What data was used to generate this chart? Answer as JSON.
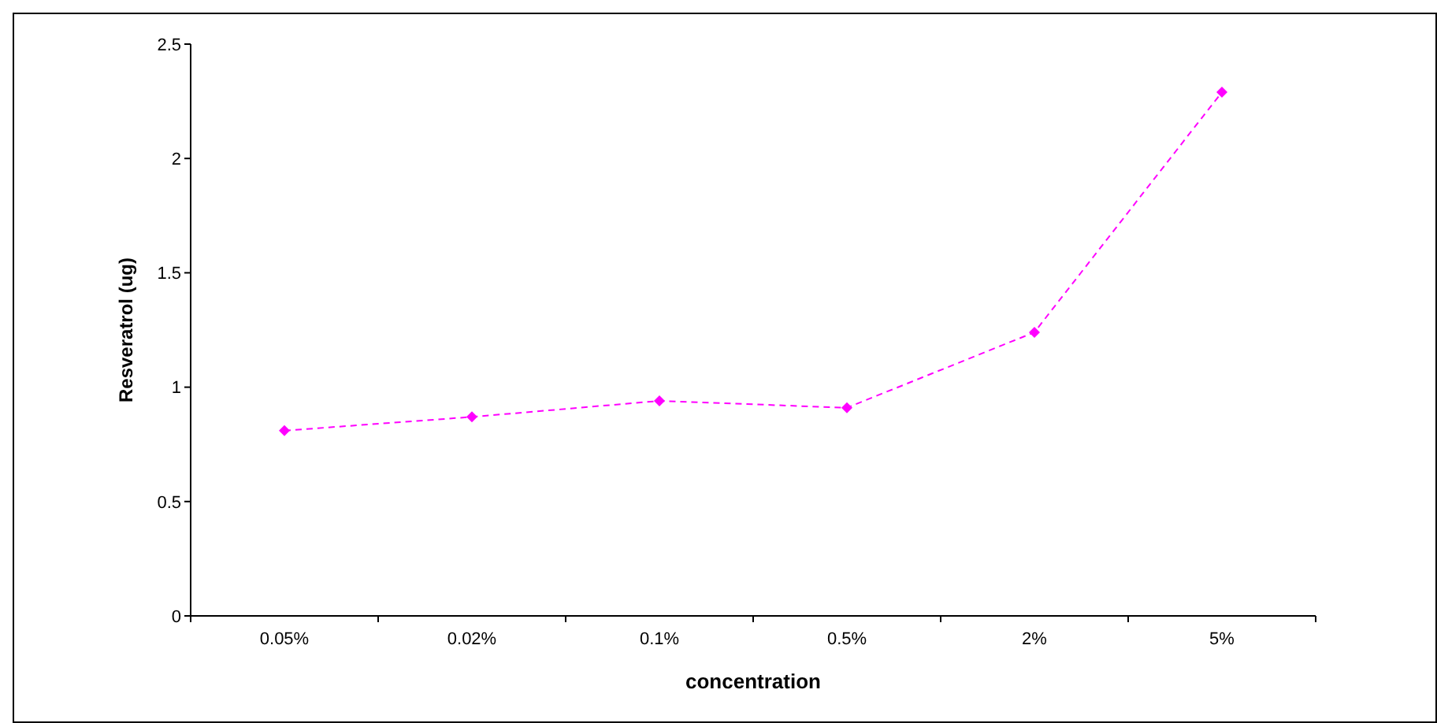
{
  "chart_data": {
    "type": "line",
    "ylabel": "Resveratrol (ug)",
    "xlabel": "concentration",
    "categories": [
      "0.05%",
      "0.02%",
      "0.1%",
      "0.5%",
      "2%",
      "5%"
    ],
    "series": [
      {
        "color": "#ff00ff",
        "values": [
          0.81,
          0.87,
          0.94,
          0.91,
          1.24,
          2.29
        ]
      }
    ],
    "ylim": [
      0,
      2.5
    ],
    "yticks": [
      0,
      0.5,
      1,
      1.5,
      2,
      2.5
    ],
    "grid": false,
    "marker": "diamond",
    "line_style": "dashed"
  }
}
